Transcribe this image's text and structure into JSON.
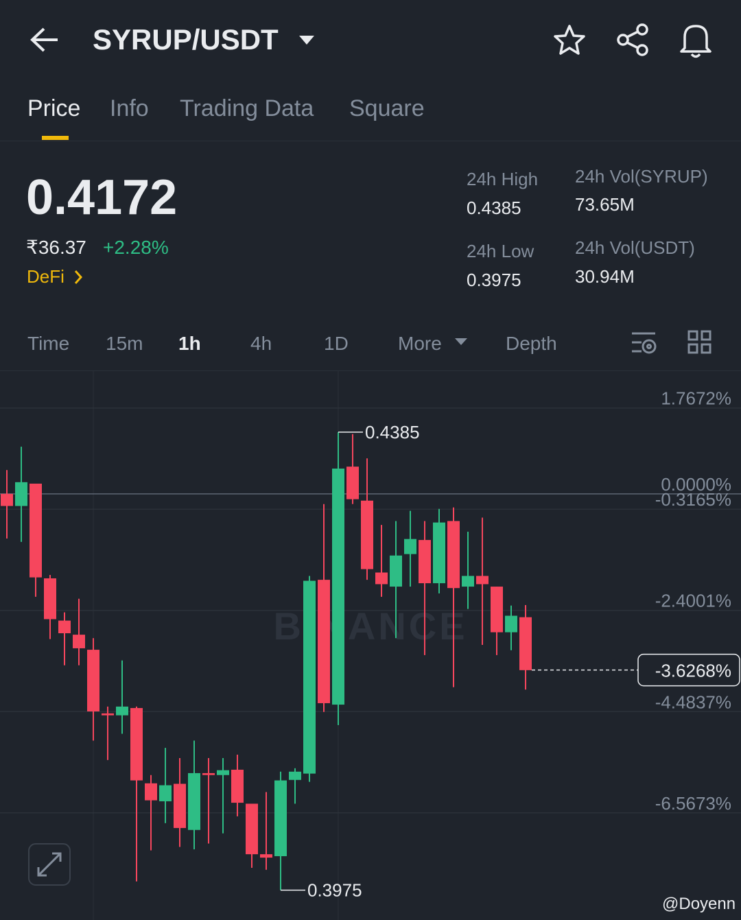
{
  "header": {
    "title": "SYRUP/USDT"
  },
  "tabs": [
    "Price",
    "Info",
    "Trading Data",
    "Square"
  ],
  "ticker": {
    "price": "0.4172",
    "fiat": "₹36.37",
    "change": "+2.28%",
    "tag": "DeFi",
    "stats": [
      {
        "label": "24h High",
        "value": "0.4385"
      },
      {
        "label": "24h Vol(SYRUP)",
        "value": "73.65M"
      },
      {
        "label": "24h Low",
        "value": "0.3975"
      },
      {
        "label": "24h Vol(USDT)",
        "value": "30.94M"
      }
    ]
  },
  "intervals": [
    "Time",
    "15m",
    "1h",
    "4h",
    "1D",
    "More",
    "Depth"
  ],
  "chart_data": {
    "type": "candlestick",
    "watermark": "BINANCE",
    "up_color": "#2ebd85",
    "down_color": "#f6465d",
    "open": [
      0,
      -0.25,
      0.21,
      -1.74,
      -2.61,
      -2.9,
      -3.21,
      -4.52,
      -4.56,
      -4.41,
      -5.96,
      -6.33,
      -5.97,
      -6.92,
      -5.75,
      -5.79,
      -5.68,
      -6.38,
      -7.42,
      -7.46,
      -5.89,
      -5.76,
      -1.77,
      -4.34,
      0.56,
      -0.14,
      -1.62,
      -1.91,
      -1.24,
      -0.95,
      -1.84,
      -0.56,
      -1.91,
      -1.69,
      -1.91,
      -2.85,
      -2.54
    ],
    "close": [
      -0.25,
      0.24,
      -1.72,
      -2.58,
      -2.87,
      -3.18,
      -4.48,
      -4.56,
      -4.38,
      -5.9,
      -6.31,
      -6.0,
      -6.88,
      -5.75,
      -5.79,
      -5.69,
      -6.36,
      -7.42,
      -7.49,
      -5.9,
      -5.72,
      -1.79,
      -4.31,
      0.52,
      -0.11,
      -1.55,
      -1.86,
      -1.27,
      -0.93,
      -1.84,
      -0.59,
      -1.94,
      -1.69,
      -1.86,
      -2.85,
      -2.51,
      -3.63
    ],
    "high": [
      0.49,
      0.97,
      0.21,
      -1.67,
      -2.44,
      -2.16,
      -2.97,
      -4.38,
      -3.43,
      -4.38,
      -5.79,
      -5.23,
      -5.44,
      -5.08,
      -5.44,
      -5.44,
      -5.37,
      -6.38,
      -6.14,
      -5.72,
      -5.65,
      -1.69,
      -0.21,
      1.27,
      1.23,
      0.73,
      -0.64,
      -0.56,
      -0.35,
      -0.56,
      -0.31,
      -0.28,
      -0.78,
      -0.49,
      -1.91,
      -2.3,
      -2.29
    ],
    "low": [
      -0.92,
      -0.99,
      -2.12,
      -2.99,
      -3.53,
      -3.53,
      -5.08,
      -5.48,
      -4.94,
      -7.98,
      -7.34,
      -6.78,
      -7.27,
      -7.32,
      -7.2,
      -6.99,
      -6.64,
      -7.7,
      -7.74,
      -8.16,
      -6.38,
      -5.93,
      -4.49,
      -4.76,
      -0.21,
      -1.77,
      -2.12,
      -2.97,
      -1.91,
      -3.32,
      -2.05,
      -3.98,
      -2.37,
      -3.11,
      -3.32,
      -3.22,
      -4.03
    ],
    "ylim": [
      -8.76,
      2.54
    ],
    "yticks": [
      {
        "value": 1.7672,
        "label": "1.7672%"
      },
      {
        "value": 0,
        "label": "0.0000%"
      },
      {
        "value": -0.3165,
        "label": "-0.3165%"
      },
      {
        "value": -2.4001,
        "label": "-2.4001%"
      },
      {
        "value": -4.4837,
        "label": "-4.4837%"
      },
      {
        "value": -6.5673,
        "label": "-6.5673%"
      }
    ],
    "high_label": "0.4385",
    "low_label": "0.3975",
    "last": {
      "value": -3.6268,
      "label": "-3.6268%"
    }
  },
  "credit": "@Doyenn"
}
